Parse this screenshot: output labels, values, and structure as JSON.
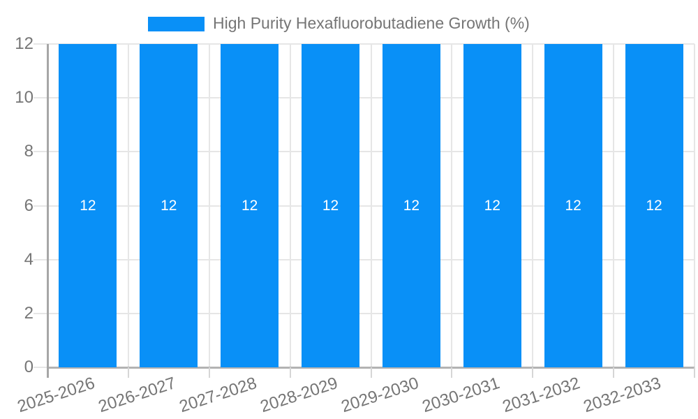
{
  "chart_data": {
    "type": "bar",
    "title": "High Purity Hexafluorobutadiene Growth (%)",
    "categories": [
      "2025-2026",
      "2026-2027",
      "2027-2028",
      "2028-2029",
      "2029-2030",
      "2030-2031",
      "2031-2032",
      "2032-2033"
    ],
    "values": [
      12,
      12,
      12,
      12,
      12,
      12,
      12,
      12
    ],
    "bar_value_labels": [
      "12",
      "12",
      "12",
      "12",
      "12",
      "12",
      "12",
      "12"
    ],
    "xlabel": "",
    "ylabel": "",
    "ylim": [
      0,
      12
    ],
    "y_ticks": [
      0,
      2,
      4,
      6,
      8,
      10,
      12
    ],
    "y_tick_labels": [
      "0",
      "2",
      "4",
      "6",
      "8",
      "10",
      "12"
    ],
    "grid": true,
    "legend_position": "top-center",
    "colors": {
      "bar": "#0990f7",
      "bar_label": "#ffffff",
      "legend_text": "#757575",
      "axis_label": "#757575",
      "gridline": "#e6e6e6",
      "x_axis_line": "#b3b3b3",
      "y_axis_line": "#a6a6a6",
      "tick": "#d6d6d6",
      "background": "#ffffff"
    }
  }
}
